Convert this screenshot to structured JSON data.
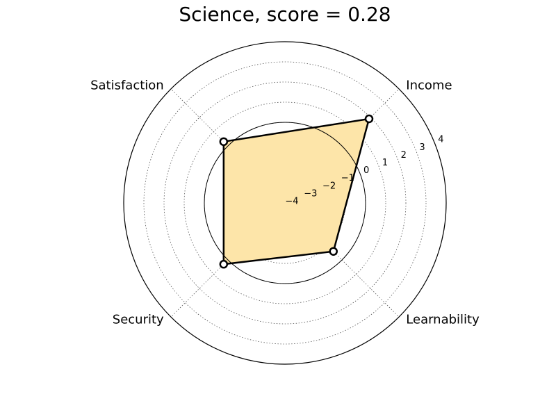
{
  "chart_data": {
    "type": "radar",
    "title": "Science, score = 0.28",
    "axes": [
      "Income",
      "Learnability",
      "Security",
      "Satisfaction"
    ],
    "values": [
      1.9,
      -0.6,
      0.3,
      0.3
    ],
    "r_range": [
      -4,
      4
    ],
    "r_ticks": [
      -4,
      -3,
      -2,
      -1,
      0,
      1,
      2,
      3,
      4
    ],
    "r_tick_labels": [
      "−4",
      "−3",
      "−2",
      "−1",
      "0",
      "1",
      "2",
      "3",
      "4"
    ],
    "grid": true,
    "colors": {
      "fill": "#fde5a9",
      "line": "#000000",
      "marker_face": "#ffffff",
      "grid": "#555555"
    }
  }
}
